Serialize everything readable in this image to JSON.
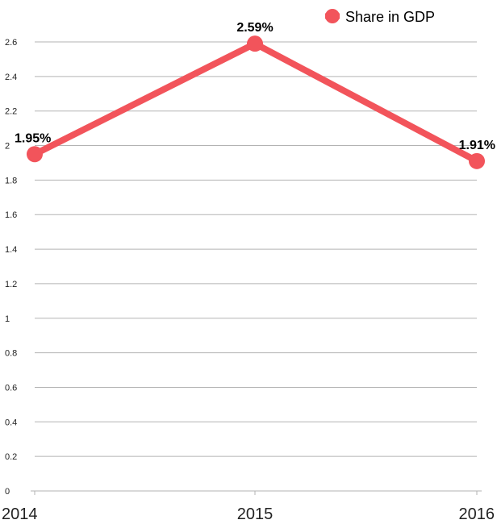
{
  "chart_data": {
    "type": "line",
    "x": [
      "2014",
      "2015",
      "2016"
    ],
    "series": [
      {
        "name": "Share in GDP",
        "values": [
          1.95,
          2.59,
          1.91
        ],
        "data_labels": [
          "1.95%",
          "2.59%",
          "1.91%"
        ],
        "color": "#f2545b"
      }
    ],
    "yticks": [
      "0",
      "0.2",
      "0.4",
      "0.6",
      "0.8",
      "1",
      "1.2",
      "1.4",
      "1.6",
      "1.8",
      "2",
      "2.2",
      "2.4",
      "2.6"
    ],
    "ylim": [
      0,
      2.6
    ],
    "grid": true,
    "legend": "top-right"
  }
}
